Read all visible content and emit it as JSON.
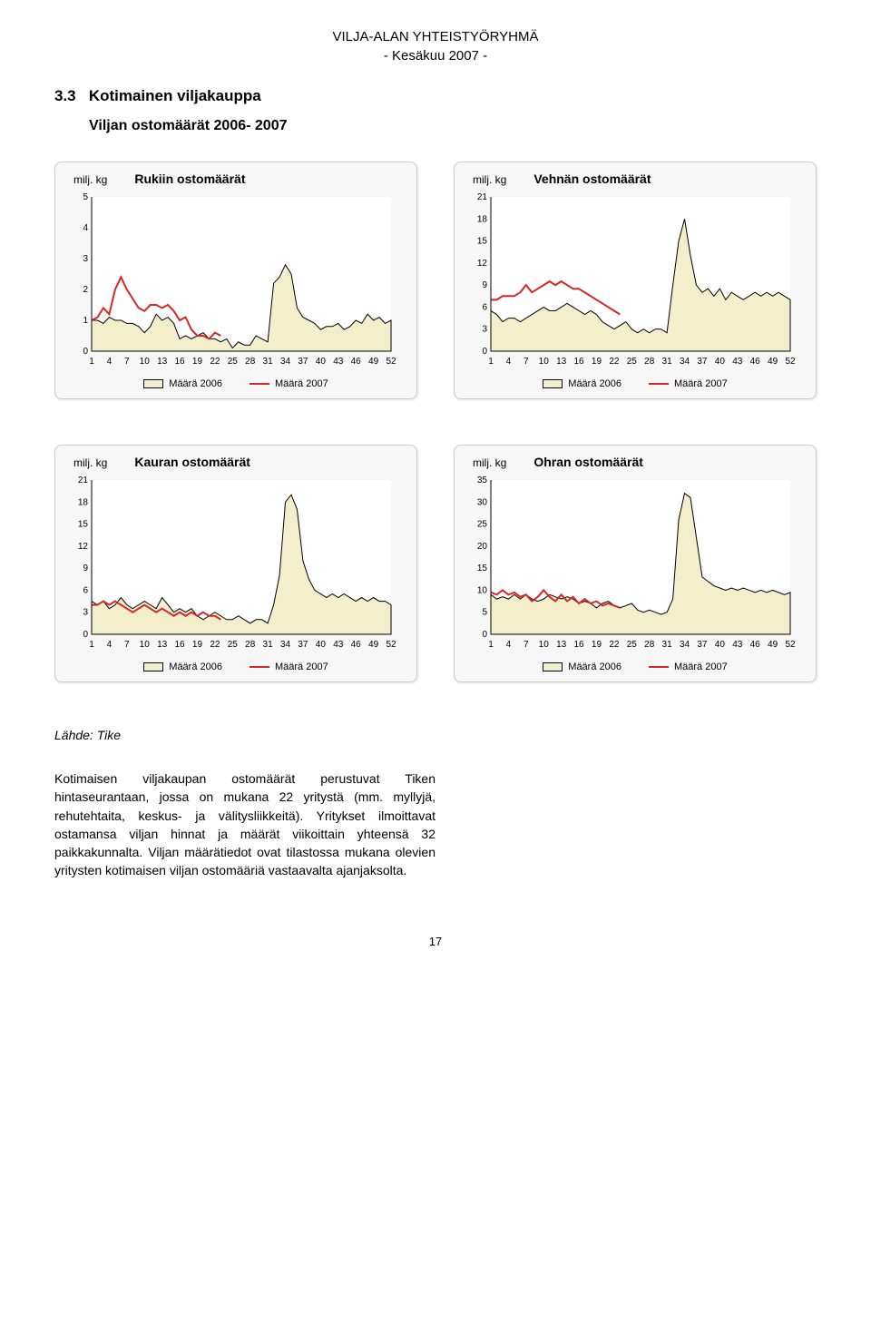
{
  "doc_header": {
    "line1": "VILJA-ALAN YHTEISTYÖRYHMÄ",
    "line2": "- Kesäkuu 2007 -"
  },
  "section_number": "3.3",
  "section_title": "Kotimainen viljakauppa",
  "section_sub": "Viljan ostomäärät 2006- 2007",
  "charts_common": {
    "unit_label": "milj. kg",
    "x_ticks": [
      1,
      4,
      7,
      10,
      13,
      16,
      19,
      22,
      25,
      28,
      31,
      34,
      37,
      40,
      43,
      46,
      49,
      52
    ],
    "legend2006": "Määrä 2006",
    "legend2007": "Määrä 2007",
    "area_fill": "#f3efcd",
    "area_stroke": "#000000",
    "line2007_color": "#d62728",
    "grid_color": "#e0e0e0",
    "bg_box": "#f7f7f7",
    "tick_fontsize": 10
  },
  "chart_rukiin": {
    "title": "Rukiin ostomäärät",
    "ymin": 0,
    "ymax": 5,
    "ystep": 1,
    "s2006": [
      1.0,
      1.0,
      0.9,
      1.1,
      1.0,
      1.0,
      0.9,
      0.9,
      0.8,
      0.6,
      0.8,
      1.2,
      1.0,
      1.1,
      0.9,
      0.4,
      0.5,
      0.4,
      0.5,
      0.6,
      0.4,
      0.4,
      0.3,
      0.4,
      0.1,
      0.3,
      0.2,
      0.2,
      0.5,
      0.4,
      0.3,
      2.2,
      2.4,
      2.8,
      2.5,
      1.4,
      1.1,
      1.0,
      0.9,
      0.7,
      0.8,
      0.8,
      0.9,
      0.7,
      0.8,
      1.0,
      0.9,
      1.2,
      1.0,
      1.1,
      0.9,
      1.0
    ],
    "s2007": [
      1.0,
      1.1,
      1.4,
      1.2,
      2.0,
      2.4,
      2.0,
      1.7,
      1.4,
      1.3,
      1.5,
      1.5,
      1.4,
      1.5,
      1.3,
      1.0,
      1.1,
      0.7,
      0.5,
      0.5,
      0.4,
      0.6,
      0.5
    ]
  },
  "chart_vehnan": {
    "title": "Vehnän ostomäärät",
    "ymin": 0,
    "ymax": 21,
    "ystep": 3,
    "s2006": [
      5.5,
      5.0,
      4.0,
      4.5,
      4.5,
      4.0,
      4.5,
      5.0,
      5.5,
      6.0,
      5.5,
      5.5,
      6.0,
      6.5,
      6.0,
      5.5,
      5.0,
      5.5,
      5.0,
      4.0,
      3.5,
      3.0,
      3.5,
      4.0,
      3.0,
      2.5,
      3.0,
      2.5,
      3.0,
      3.0,
      2.5,
      9.0,
      15.0,
      18.0,
      13.0,
      9.0,
      8.0,
      8.5,
      7.5,
      8.5,
      7.0,
      8.0,
      7.5,
      7.0,
      7.5,
      8.0,
      7.5,
      8.0,
      7.5,
      8.0,
      7.5,
      7.0
    ],
    "s2007": [
      7.0,
      7.0,
      7.5,
      7.5,
      7.5,
      8.0,
      9.0,
      8.0,
      8.5,
      9.0,
      9.5,
      9.0,
      9.5,
      9.0,
      8.5,
      8.5,
      8.0,
      7.5,
      7.0,
      6.5,
      6.0,
      5.5,
      5.0
    ]
  },
  "chart_kauran": {
    "title": "Kauran ostomäärät",
    "ymin": 0,
    "ymax": 21,
    "ystep": 3,
    "s2006": [
      4.5,
      4.0,
      4.5,
      3.5,
      4.0,
      5.0,
      4.0,
      3.5,
      4.0,
      4.5,
      4.0,
      3.5,
      5.0,
      4.0,
      3.0,
      3.5,
      3.0,
      3.5,
      2.5,
      2.0,
      2.5,
      3.0,
      2.5,
      2.0,
      2.0,
      2.5,
      2.0,
      1.5,
      2.0,
      2.0,
      1.5,
      4.0,
      8.0,
      18.0,
      19.0,
      17.0,
      10.0,
      7.5,
      6.0,
      5.5,
      5.0,
      5.5,
      5.0,
      5.5,
      5.0,
      4.5,
      5.0,
      4.5,
      5.0,
      4.5,
      4.5,
      4.0
    ],
    "s2007": [
      4.0,
      4.0,
      4.5,
      4.0,
      4.5,
      4.0,
      3.5,
      3.0,
      3.5,
      4.0,
      3.5,
      3.0,
      3.5,
      3.0,
      2.5,
      3.0,
      2.5,
      3.0,
      2.5,
      3.0,
      2.5,
      2.5,
      2.0
    ]
  },
  "chart_ohran": {
    "title": "Ohran ostomäärät",
    "ymin": 0,
    "ymax": 35,
    "ystep": 5,
    "s2006": [
      9.0,
      8.0,
      8.5,
      8.0,
      9.0,
      8.0,
      9.0,
      8.0,
      7.5,
      8.0,
      9.0,
      8.5,
      8.0,
      8.5,
      8.0,
      7.0,
      7.5,
      7.0,
      6.0,
      7.0,
      7.5,
      6.5,
      6.0,
      6.5,
      7.0,
      5.5,
      5.0,
      5.5,
      5.0,
      4.5,
      5.0,
      8.0,
      26.0,
      32.0,
      31.0,
      22.0,
      13.0,
      12.0,
      11.0,
      10.5,
      10.0,
      10.5,
      10.0,
      10.5,
      10.0,
      9.5,
      10.0,
      9.5,
      10.0,
      9.5,
      9.0,
      9.5
    ],
    "s2007": [
      9.5,
      9.0,
      10.0,
      9.0,
      9.5,
      8.5,
      9.0,
      7.5,
      8.5,
      10.0,
      8.5,
      7.5,
      9.0,
      7.5,
      8.5,
      7.0,
      8.0,
      7.0,
      7.5,
      6.5,
      7.0,
      6.5,
      6.0
    ]
  },
  "source": "Lähde: Tike",
  "body": "Kotimaisen viljakaupan ostomäärät perustuvat Tiken hintaseurantaan, jossa on mukana 22 yritystä (mm. myllyjä, rehutehtaita, keskus- ja välitysliikkeitä). Yritykset ilmoittavat ostamansa viljan hinnat ja määrät viikoittain yhteensä 32 paikkakunnalta. Viljan määrätiedot ovat tilastossa mukana olevien yritysten kotimaisen viljan ostomääriä vastaavalta ajanjaksolta.",
  "page_number": "17"
}
